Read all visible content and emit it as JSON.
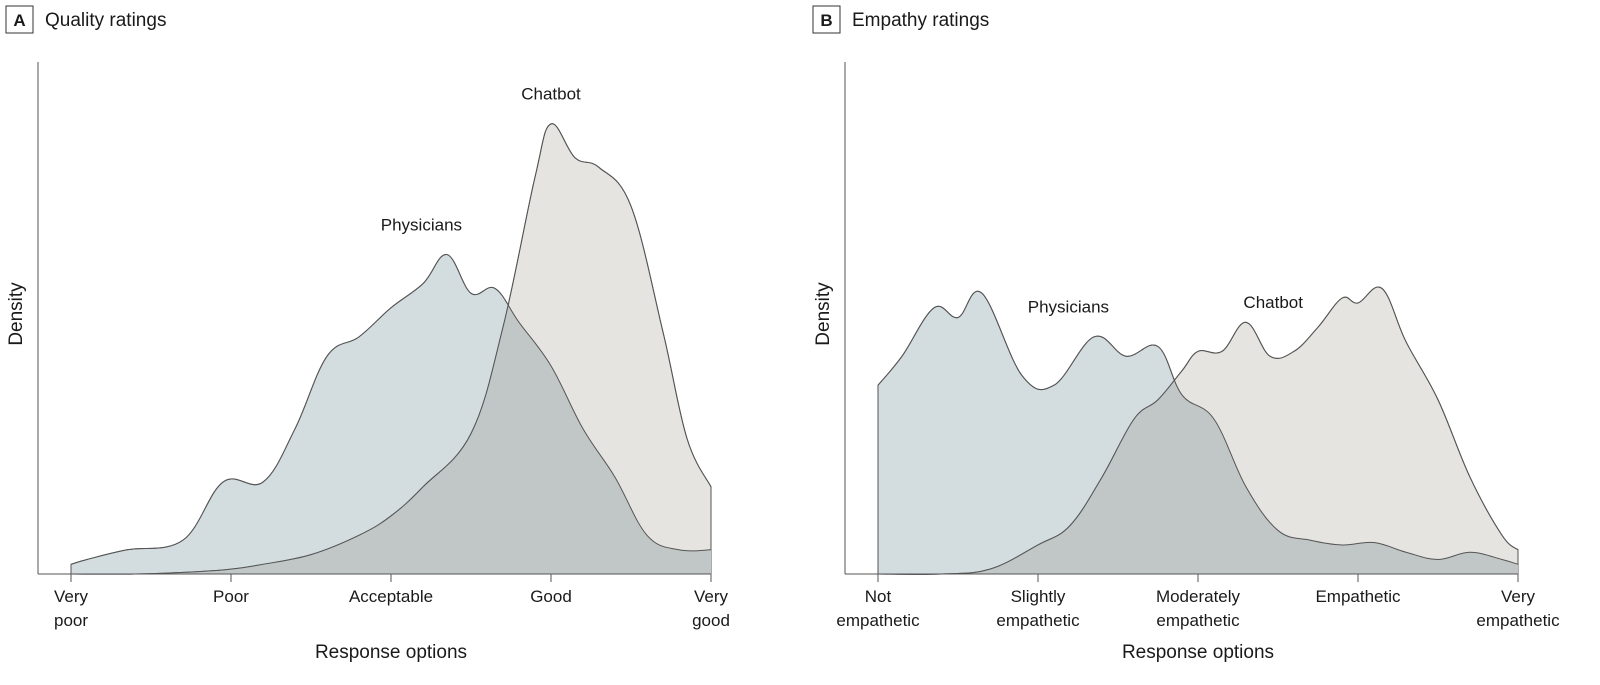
{
  "colors": {
    "physicians": "#d3dcdf",
    "chatbot": "#e5e4e0",
    "overlap": "#c1c6c6",
    "stroke": "#555555"
  },
  "chart_data": [
    {
      "type": "area",
      "panel": "A",
      "title": "Quality ratings",
      "xlabel": "Response options",
      "ylabel": "Density",
      "grid": false,
      "categories": [
        [
          "Very",
          "poor"
        ],
        [
          "Poor"
        ],
        [
          "Acceptable"
        ],
        [
          "Good"
        ],
        [
          "Very",
          "good"
        ]
      ],
      "xlim": [
        1,
        5
      ],
      "ylim": [
        0,
        1
      ],
      "series": [
        {
          "name": "Physicians",
          "color": "physicians",
          "label_at": [
            3.19,
            0.71
          ],
          "x": [
            1.0,
            1.1,
            1.35,
            1.7,
            1.95,
            2.2,
            2.4,
            2.6,
            2.8,
            3.0,
            3.2,
            3.35,
            3.5,
            3.65,
            3.8,
            4.0,
            4.2,
            4.4,
            4.6,
            4.8,
            5.0
          ],
          "y": [
            0.02,
            0.03,
            0.05,
            0.07,
            0.19,
            0.19,
            0.3,
            0.45,
            0.49,
            0.55,
            0.6,
            0.66,
            0.58,
            0.59,
            0.52,
            0.43,
            0.3,
            0.2,
            0.08,
            0.05,
            0.05
          ]
        },
        {
          "name": "Chatbot",
          "color": "chatbot",
          "label_at": [
            4.0,
            0.98
          ],
          "x": [
            1.0,
            1.4,
            1.8,
            2.0,
            2.2,
            2.5,
            2.8,
            3.0,
            3.2,
            3.5,
            3.7,
            3.9,
            4.0,
            4.15,
            4.3,
            4.5,
            4.7,
            4.85,
            5.0
          ],
          "y": [
            0.0,
            0.0,
            0.005,
            0.01,
            0.02,
            0.04,
            0.08,
            0.12,
            0.18,
            0.29,
            0.51,
            0.82,
            0.93,
            0.86,
            0.84,
            0.76,
            0.5,
            0.28,
            0.18
          ]
        }
      ]
    },
    {
      "type": "area",
      "panel": "B",
      "title": "Empathy ratings",
      "xlabel": "Response options",
      "ylabel": "Density",
      "grid": false,
      "categories": [
        [
          "Not",
          "empathetic"
        ],
        [
          "Slightly",
          "empathetic"
        ],
        [
          "Moderately",
          "empathetic"
        ],
        [
          "Empathetic"
        ],
        [
          "Very",
          "empathetic"
        ]
      ],
      "xlim": [
        1,
        5
      ],
      "ylim": [
        0,
        1
      ],
      "series": [
        {
          "name": "Physicians",
          "color": "physicians",
          "label_at": [
            2.19,
            0.54
          ],
          "x": [
            1.0,
            1.15,
            1.35,
            1.5,
            1.65,
            1.9,
            2.1,
            2.35,
            2.55,
            2.75,
            2.9,
            3.1,
            3.3,
            3.5,
            3.7,
            3.9,
            4.1,
            4.3,
            4.5,
            4.7,
            4.9,
            5.0
          ],
          "y": [
            0.39,
            0.45,
            0.55,
            0.53,
            0.58,
            0.41,
            0.39,
            0.49,
            0.45,
            0.47,
            0.37,
            0.32,
            0.18,
            0.09,
            0.07,
            0.06,
            0.065,
            0.045,
            0.03,
            0.045,
            0.03,
            0.02
          ]
        },
        {
          "name": "Chatbot",
          "color": "chatbot",
          "label_at": [
            3.47,
            0.55
          ],
          "x": [
            1.0,
            1.4,
            1.7,
            2.0,
            2.2,
            2.4,
            2.6,
            2.75,
            2.9,
            3.0,
            3.15,
            3.3,
            3.45,
            3.6,
            3.75,
            3.9,
            4.0,
            4.15,
            4.3,
            4.5,
            4.7,
            4.9,
            5.0
          ],
          "y": [
            0.0,
            0.0,
            0.01,
            0.06,
            0.1,
            0.2,
            0.32,
            0.36,
            0.42,
            0.46,
            0.46,
            0.52,
            0.45,
            0.46,
            0.51,
            0.57,
            0.56,
            0.59,
            0.48,
            0.36,
            0.2,
            0.08,
            0.05
          ]
        }
      ]
    }
  ]
}
